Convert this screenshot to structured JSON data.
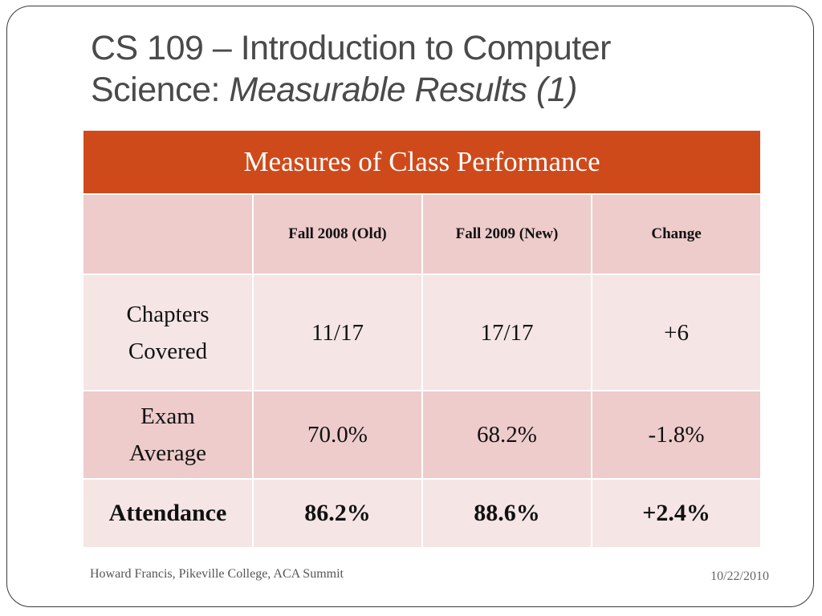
{
  "slide": {
    "title_line1": "CS 109 – Introduction to Computer",
    "title_line2_plain": "Science: ",
    "title_line2_italic": "Measurable Results (1)"
  },
  "table": {
    "caption": "Measures of Class Performance",
    "columns": [
      "",
      "Fall 2008 (Old)",
      "Fall 2009 (New)",
      "Change"
    ],
    "rows": [
      {
        "label_line1": "Chapters",
        "label_line2": "Covered",
        "old": "11/17",
        "new": "17/17",
        "change": "+6"
      },
      {
        "label_line1": "Exam",
        "label_line2": "Average",
        "old": "70.0%",
        "new": "68.2%",
        "change": "-1.8%"
      },
      {
        "label": "Attendance",
        "old": "86.2%",
        "new": "88.6%",
        "change": "+2.4%"
      }
    ]
  },
  "footer": {
    "left": "Howard Francis, Pikeville College, ACA Summit",
    "right": "10/22/2010"
  },
  "colors": {
    "header": "#cf4a1b",
    "row_dark": "#edcccb",
    "row_light": "#f6e5e5"
  }
}
